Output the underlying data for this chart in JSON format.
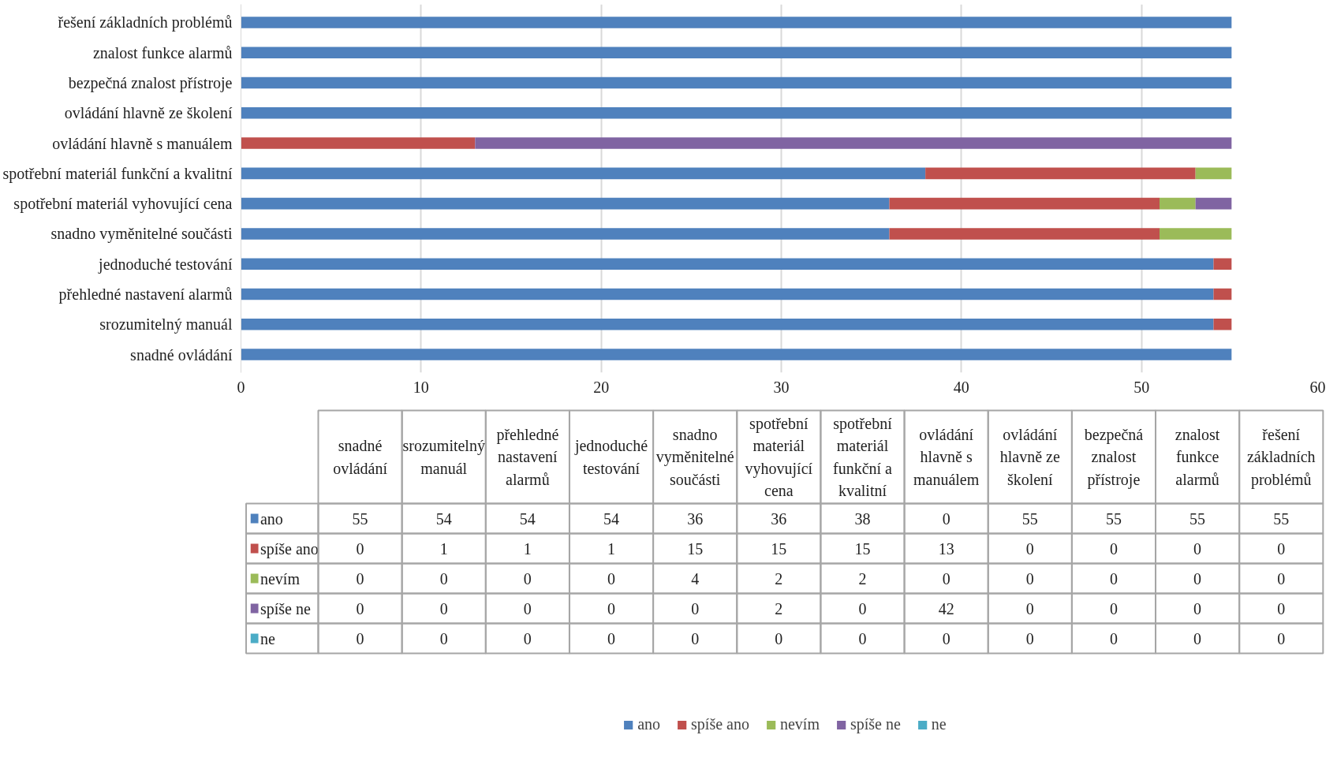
{
  "chart_data": [
    {
      "type": "bar",
      "orientation": "horizontal",
      "stacked": true,
      "grid": "x",
      "legend": "bottom",
      "categories": [
        "řešení základních problémů",
        "znalost funkce alarmů",
        "bezpečná znalost přístroje",
        "ovládání hlavně ze školení",
        "ovládání hlavně s manuálem",
        "spotřební materiál funkční a kvalitní",
        "spotřební materiál vyhovující cena",
        "snadno vyměnitelné součásti",
        "jednoduché testování",
        "přehledné nastavení alarmů",
        "srozumitelný manuál",
        "snadné ovládání"
      ],
      "xlim": [
        0,
        60
      ],
      "xticks": [
        0,
        10,
        20,
        30,
        40,
        50,
        60
      ],
      "series": [
        {
          "name": "ano",
          "color": "#4f81bd",
          "values": [
            55,
            55,
            55,
            55,
            0,
            38,
            36,
            36,
            54,
            54,
            54,
            55
          ]
        },
        {
          "name": "spíše ano",
          "color": "#c0504d",
          "values": [
            0,
            0,
            0,
            0,
            13,
            15,
            15,
            15,
            1,
            1,
            1,
            0
          ]
        },
        {
          "name": "nevím",
          "color": "#9bbb59",
          "values": [
            0,
            0,
            0,
            0,
            0,
            2,
            2,
            4,
            0,
            0,
            0,
            0
          ]
        },
        {
          "name": "spíše ne",
          "color": "#8064a2",
          "values": [
            0,
            0,
            0,
            0,
            42,
            0,
            2,
            0,
            0,
            0,
            0,
            0
          ]
        },
        {
          "name": "ne",
          "color": "#4bacc6",
          "values": [
            0,
            0,
            0,
            0,
            0,
            0,
            0,
            0,
            0,
            0,
            0,
            0
          ]
        }
      ]
    },
    {
      "type": "other",
      "data_labels": true,
      "categories": [
        "snadné ovládání",
        "srozumitelný manuál",
        "přehledné nastavení alarmů",
        "jednoduché testování",
        "snadno vyměnitelné součásti",
        "spotřební materiál vyhovující cena",
        "spotřební materiál funkční a kvalitní",
        "ovládání hlavně s manuálem",
        "ovládání hlavně ze školení",
        "bezpečná znalost přístroje",
        "znalost funkce alarmů",
        "řešení základních problémů"
      ],
      "series": [
        {
          "name": "ano",
          "values": [
            55,
            54,
            54,
            54,
            36,
            36,
            38,
            0,
            55,
            55,
            55,
            55
          ]
        },
        {
          "name": "spíše ano",
          "values": [
            0,
            1,
            1,
            1,
            15,
            15,
            15,
            13,
            0,
            0,
            0,
            0
          ]
        },
        {
          "name": "nevím",
          "values": [
            0,
            0,
            0,
            0,
            4,
            2,
            2,
            0,
            0,
            0,
            0,
            0
          ]
        },
        {
          "name": "spíše ne",
          "values": [
            0,
            0,
            0,
            0,
            0,
            2,
            0,
            42,
            0,
            0,
            0,
            0
          ]
        },
        {
          "name": "ne",
          "values": [
            0,
            0,
            0,
            0,
            0,
            0,
            0,
            0,
            0,
            0,
            0,
            0
          ]
        }
      ]
    }
  ]
}
